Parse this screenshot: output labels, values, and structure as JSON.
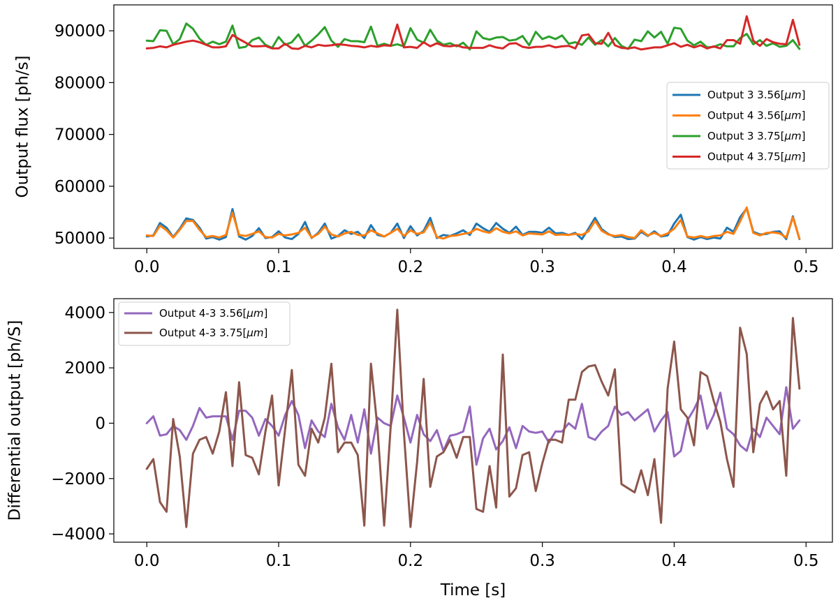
{
  "chart_data": [
    {
      "type": "line",
      "xlabel": "",
      "ylabel": "Output flux [ph/s]",
      "xlim": [
        -0.025,
        0.52
      ],
      "ylim": [
        48000,
        95000
      ],
      "xticks": [
        0.0,
        0.1,
        0.2,
        0.3,
        0.4,
        0.5
      ],
      "xtick_labels": [
        "0.0",
        "0.1",
        "0.2",
        "0.3",
        "0.4",
        "0.5"
      ],
      "yticks": [
        50000,
        60000,
        70000,
        80000,
        90000
      ],
      "ytick_labels": [
        "50000",
        "60000",
        "70000",
        "80000",
        "90000"
      ],
      "legend_position": "center-right",
      "x": [
        0.0,
        0.005,
        0.01,
        0.015,
        0.02,
        0.025,
        0.03,
        0.035,
        0.04,
        0.045,
        0.05,
        0.055,
        0.06,
        0.065,
        0.07,
        0.075,
        0.08,
        0.085,
        0.09,
        0.095,
        0.1,
        0.105,
        0.11,
        0.115,
        0.12,
        0.125,
        0.13,
        0.135,
        0.14,
        0.145,
        0.15,
        0.155,
        0.16,
        0.165,
        0.17,
        0.175,
        0.18,
        0.185,
        0.19,
        0.195,
        0.2,
        0.205,
        0.21,
        0.215,
        0.22,
        0.225,
        0.23,
        0.235,
        0.24,
        0.245,
        0.25,
        0.255,
        0.26,
        0.265,
        0.27,
        0.275,
        0.28,
        0.285,
        0.29,
        0.295,
        0.3,
        0.305,
        0.31,
        0.315,
        0.32,
        0.325,
        0.33,
        0.335,
        0.34,
        0.345,
        0.35,
        0.355,
        0.36,
        0.365,
        0.37,
        0.375,
        0.38,
        0.385,
        0.39,
        0.395,
        0.4,
        0.405,
        0.41,
        0.415,
        0.42,
        0.425,
        0.43,
        0.435,
        0.44,
        0.445,
        0.45,
        0.455,
        0.46,
        0.465,
        0.47,
        0.475,
        0.48,
        0.485,
        0.49,
        0.495
      ],
      "series": [
        {
          "name": "Output 3 3.56[μm]",
          "legend_label": "Output 3 3.56[",
          "color": "#1f77b4",
          "values": [
            50300,
            50500,
            52900,
            52000,
            50200,
            51800,
            53800,
            53500,
            52000,
            49900,
            50200,
            49700,
            50200,
            55600,
            50300,
            49700,
            50400,
            51900,
            50000,
            50200,
            51300,
            50100,
            49800,
            50800,
            53100,
            50000,
            51000,
            52800,
            49900,
            50400,
            51500,
            50800,
            51200,
            50000,
            52500,
            50600,
            50300,
            51000,
            52800,
            50000,
            52300,
            50500,
            51400,
            53900,
            50000,
            50600,
            50400,
            50900,
            51500,
            50600,
            52800,
            51900,
            51200,
            52900,
            51800,
            51000,
            52200,
            50600,
            51200,
            51200,
            51000,
            52000,
            50900,
            51000,
            50600,
            51000,
            49800,
            51800,
            53900,
            51700,
            50800,
            50200,
            50300,
            49800,
            49900,
            51200,
            50400,
            51300,
            50300,
            50500,
            52800,
            54500,
            50200,
            49700,
            50200,
            49800,
            50100,
            49900,
            52000,
            51200,
            54000,
            55700,
            51200,
            50700,
            50800,
            51200,
            51300,
            49800,
            54200,
            49800
          ]
        },
        {
          "name": "Output 4 3.56[μm]",
          "legend_label": "Output 4 3.56[",
          "color": "#ff7f0e",
          "values": [
            50500,
            50400,
            52400,
            51500,
            50100,
            51600,
            53300,
            53300,
            51600,
            50200,
            50400,
            50100,
            50600,
            54900,
            50600,
            50400,
            50800,
            51300,
            50200,
            50100,
            50800,
            50500,
            50700,
            51000,
            52000,
            50100,
            50800,
            52200,
            50700,
            50300,
            50900,
            51200,
            50600,
            50500,
            51500,
            50900,
            50300,
            51000,
            51800,
            50400,
            51500,
            50800,
            51100,
            53000,
            50200,
            49900,
            50400,
            50500,
            50800,
            51000,
            51800,
            51300,
            51000,
            51900,
            51200,
            50900,
            51300,
            50500,
            50900,
            50800,
            50700,
            51300,
            50600,
            50700,
            50600,
            50800,
            50600,
            51300,
            53300,
            51400,
            50700,
            50400,
            50600,
            50200,
            50000,
            51500,
            50500,
            51000,
            50400,
            50900,
            51800,
            53500,
            50300,
            50100,
            50400,
            50100,
            50400,
            50500,
            51200,
            50800,
            53200,
            55900,
            51000,
            50500,
            51000,
            51100,
            50900,
            50100,
            54000,
            49900
          ]
        },
        {
          "name": "Output 3 3.75[μm]",
          "legend_label": "Output 3 3.75[",
          "color": "#2ca02c",
          "values": [
            88100,
            88000,
            90100,
            90000,
            87400,
            88400,
            91400,
            90400,
            88500,
            87300,
            87900,
            87400,
            87900,
            91000,
            86700,
            86900,
            88200,
            88700,
            87300,
            86700,
            88800,
            87300,
            87800,
            89300,
            87100,
            88100,
            89300,
            90700,
            88100,
            86900,
            88400,
            88000,
            88000,
            87800,
            90800,
            87100,
            87500,
            87100,
            87400,
            87000,
            90500,
            88300,
            87700,
            90200,
            88100,
            87300,
            87600,
            87000,
            87700,
            86400,
            89900,
            88600,
            88300,
            88700,
            88800,
            88100,
            88300,
            89000,
            87200,
            89800,
            88400,
            88900,
            88400,
            89100,
            87500,
            87800,
            87300,
            88700,
            87300,
            88200,
            87000,
            88600,
            87100,
            86500,
            88300,
            88000,
            89900,
            88700,
            89800,
            87500,
            90600,
            90400,
            88100,
            87200,
            87900,
            86800,
            86900,
            87400,
            87000,
            87000,
            88600,
            89400,
            87400,
            88200,
            87100,
            87600,
            86900,
            87100,
            88200,
            86500
          ]
        },
        {
          "name": "Output 4 3.75[μm]",
          "legend_label": "Output 4 3.75[",
          "color": "#d62728",
          "values": [
            86600,
            86700,
            87000,
            86800,
            87300,
            87600,
            87900,
            88100,
            87800,
            87300,
            86800,
            86800,
            87000,
            89200,
            88400,
            87700,
            87000,
            87000,
            87100,
            86600,
            86600,
            87500,
            86600,
            86500,
            87100,
            86800,
            87300,
            87100,
            87200,
            87400,
            87300,
            87100,
            87000,
            86800,
            87100,
            86900,
            87200,
            87100,
            91200,
            86800,
            86900,
            86700,
            87800,
            87000,
            87600,
            87100,
            87000,
            87200,
            86800,
            86700,
            86700,
            86700,
            87200,
            86800,
            86600,
            87500,
            87600,
            86900,
            86700,
            86900,
            86900,
            87200,
            86800,
            87000,
            87100,
            86600,
            89100,
            89300,
            87600,
            87500,
            89600,
            87200,
            86700,
            86600,
            86800,
            86400,
            86600,
            86800,
            86800,
            87200,
            87600,
            86900,
            87300,
            86800,
            87200,
            86600,
            87000,
            86600,
            88200,
            88200,
            87500,
            92800,
            88100,
            87100,
            88400,
            87800,
            87500,
            87400,
            92100,
            87300
          ]
        }
      ]
    },
    {
      "type": "line",
      "xlabel": "Time [s]",
      "ylabel": "Differential output [ph/S]",
      "xlim": [
        -0.025,
        0.52
      ],
      "ylim": [
        -4300,
        4500
      ],
      "xticks": [
        0.0,
        0.1,
        0.2,
        0.3,
        0.4,
        0.5
      ],
      "xtick_labels": [
        "0.0",
        "0.1",
        "0.2",
        "0.3",
        "0.4",
        "0.5"
      ],
      "yticks": [
        -4000,
        -2000,
        0,
        2000,
        4000
      ],
      "ytick_labels": [
        "−4000",
        "−2000",
        "0",
        "2000",
        "4000"
      ],
      "legend_position": "top-left",
      "x": [
        0.0,
        0.005,
        0.01,
        0.015,
        0.02,
        0.025,
        0.03,
        0.035,
        0.04,
        0.045,
        0.05,
        0.055,
        0.06,
        0.065,
        0.07,
        0.075,
        0.08,
        0.085,
        0.09,
        0.095,
        0.1,
        0.105,
        0.11,
        0.115,
        0.12,
        0.125,
        0.13,
        0.135,
        0.14,
        0.145,
        0.15,
        0.155,
        0.16,
        0.165,
        0.17,
        0.175,
        0.18,
        0.185,
        0.19,
        0.195,
        0.2,
        0.205,
        0.21,
        0.215,
        0.22,
        0.225,
        0.23,
        0.235,
        0.24,
        0.245,
        0.25,
        0.255,
        0.26,
        0.265,
        0.27,
        0.275,
        0.28,
        0.285,
        0.29,
        0.295,
        0.3,
        0.305,
        0.31,
        0.315,
        0.32,
        0.325,
        0.33,
        0.335,
        0.34,
        0.345,
        0.35,
        0.355,
        0.36,
        0.365,
        0.37,
        0.375,
        0.38,
        0.385,
        0.39,
        0.395,
        0.4,
        0.405,
        0.41,
        0.415,
        0.42,
        0.425,
        0.43,
        0.435,
        0.44,
        0.445,
        0.45,
        0.455,
        0.46,
        0.465,
        0.47,
        0.475,
        0.48,
        0.485,
        0.49,
        0.495
      ],
      "series": [
        {
          "name": "Output 4-3 3.56[μm]",
          "legend_label": "Output 4-3 3.56[",
          "color": "#9467bd",
          "values": [
            0,
            250,
            -450,
            -400,
            -100,
            -250,
            -600,
            -100,
            550,
            200,
            250,
            250,
            250,
            -600,
            450,
            450,
            200,
            -450,
            150,
            -100,
            -450,
            300,
            800,
            300,
            -900,
            100,
            -300,
            -500,
            700,
            -150,
            -600,
            300,
            -700,
            500,
            -1100,
            200,
            0,
            -100,
            1000,
            200,
            -700,
            300,
            -400,
            -650,
            -250,
            -1000,
            -450,
            -400,
            -300,
            600,
            -1500,
            -550,
            -200,
            -950,
            -650,
            -150,
            -900,
            -100,
            -300,
            -350,
            -300,
            -700,
            -300,
            -300,
            0,
            -200,
            700,
            -500,
            -600,
            -300,
            -100,
            600,
            300,
            400,
            100,
            300,
            500,
            -300,
            100,
            400,
            -1200,
            -1000,
            100,
            500,
            1000,
            -200,
            300,
            1100,
            -200,
            -400,
            -800,
            -1000,
            -200,
            -500,
            200,
            -100,
            -400,
            1300,
            -200,
            100
          ]
        },
        {
          "name": "Output 4-3 3.75[μm]",
          "legend_label": "Output 4-3 3.75[",
          "color": "#8c564b",
          "values": [
            -1650,
            -1300,
            -2850,
            -3200,
            150,
            -1200,
            -3750,
            -1100,
            -600,
            -500,
            -1100,
            -300,
            1120,
            -1550,
            1480,
            -1150,
            -1250,
            -1850,
            -300,
            1000,
            -2250,
            -200,
            1920,
            -1500,
            -1900,
            -200,
            -700,
            200,
            2150,
            -1050,
            -700,
            -700,
            -1150,
            -3700,
            2150,
            -200,
            -3700,
            -100,
            4100,
            -350,
            -3750,
            -1400,
            1600,
            -2300,
            -1200,
            -1050,
            -600,
            -1250,
            -500,
            -500,
            -3100,
            -3200,
            -1550,
            -3050,
            2480,
            -2650,
            -2350,
            -1150,
            -1050,
            -2450,
            -1450,
            -600,
            -600,
            -700,
            850,
            850,
            1850,
            2050,
            2100,
            1500,
            1000,
            1950,
            -2200,
            -2350,
            -2500,
            -1700,
            -2600,
            -1300,
            -3600,
            1250,
            2950,
            500,
            200,
            -800,
            1850,
            1700,
            800,
            50,
            -1300,
            -2300,
            3450,
            2500,
            -1050,
            700,
            1150,
            500,
            800,
            -1900,
            3800,
            1250
          ]
        }
      ]
    }
  ]
}
